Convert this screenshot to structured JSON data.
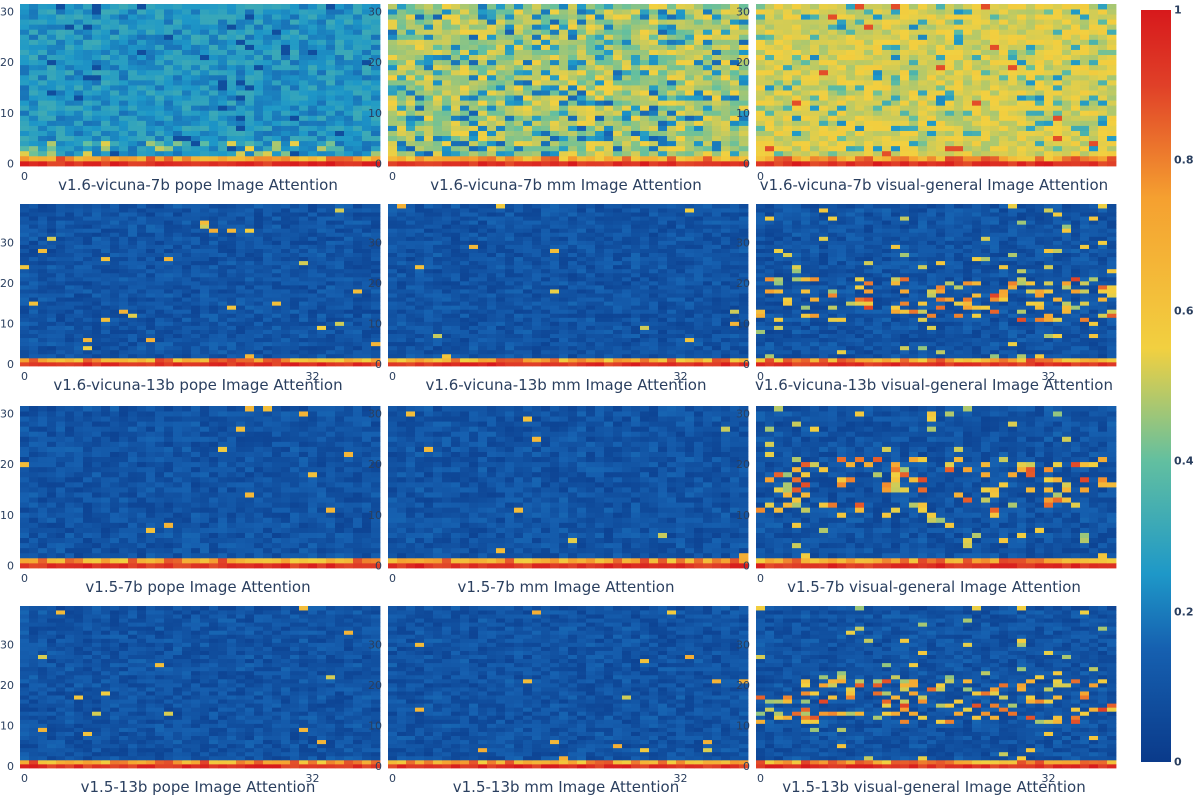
{
  "chart_data": {
    "type": "heatmap",
    "colorscale": [
      "#0a3a8a",
      "#1660b0",
      "#1e98c8",
      "#62bfa0",
      "#f2d040",
      "#f5a030",
      "#e04028",
      "#d7191c"
    ],
    "colorbar": {
      "range": [
        0,
        1
      ],
      "ticks": [
        "0",
        "0.2",
        "0.4",
        "0.6",
        "0.8",
        "1"
      ]
    },
    "panels": [
      {
        "title": "v1.6-vicuna-7b  pope Image Attention",
        "x_ticks": [
          "0"
        ],
        "y_ticks": [
          "0",
          "10",
          "20",
          "30"
        ],
        "ylim": [
          0,
          31
        ],
        "profile": "pope7",
        "seed": 11
      },
      {
        "title": "v1.6-vicuna-7b  mm Image Attention",
        "x_ticks": [
          "0"
        ],
        "y_ticks": [
          "0",
          "10",
          "20",
          "30"
        ],
        "ylim": [
          0,
          31
        ],
        "profile": "mm7",
        "seed": 12
      },
      {
        "title": "v1.6-vicuna-7b  visual-general Image Attention",
        "x_ticks": [
          "0"
        ],
        "y_ticks": [
          "0",
          "10",
          "20",
          "30"
        ],
        "ylim": [
          0,
          31
        ],
        "profile": "vg7",
        "seed": 13
      },
      {
        "title": "v1.6-vicuna-13b  pope Image Attention",
        "x_ticks": [
          "0",
          "32"
        ],
        "y_ticks": [
          "0",
          "10",
          "20",
          "30"
        ],
        "ylim": [
          0,
          39
        ],
        "profile": "lowfew",
        "seed": 21
      },
      {
        "title": "v1.6-vicuna-13b  mm Image Attention",
        "x_ticks": [
          "0",
          "32"
        ],
        "y_ticks": [
          "0",
          "10",
          "20",
          "30"
        ],
        "ylim": [
          0,
          39
        ],
        "profile": "lowfew",
        "seed": 22
      },
      {
        "title": "v1.6-vicuna-13b  visual-general Image Attention",
        "x_ticks": [
          "0",
          "32"
        ],
        "y_ticks": [
          "0",
          "10",
          "20",
          "30"
        ],
        "ylim": [
          0,
          39
        ],
        "profile": "vgband",
        "seed": 23
      },
      {
        "title": "v1.5-7b  pope Image Attention",
        "x_ticks": [
          "0"
        ],
        "y_ticks": [
          "0",
          "10",
          "20",
          "30"
        ],
        "ylim": [
          0,
          31
        ],
        "profile": "lowfew",
        "seed": 31
      },
      {
        "title": "v1.5-7b  mm Image Attention",
        "x_ticks": [
          "0"
        ],
        "y_ticks": [
          "0",
          "10",
          "20",
          "30"
        ],
        "ylim": [
          0,
          31
        ],
        "profile": "lowfew",
        "seed": 32
      },
      {
        "title": "v1.5-7b  visual-general Image Attention",
        "x_ticks": [
          "0"
        ],
        "y_ticks": [
          "0",
          "10",
          "20",
          "30"
        ],
        "ylim": [
          0,
          31
        ],
        "profile": "vgband",
        "seed": 33
      },
      {
        "title": "v1.5-13b  pope Image Attention",
        "x_ticks": [
          "0",
          "32"
        ],
        "y_ticks": [
          "0",
          "10",
          "20",
          "30"
        ],
        "ylim": [
          0,
          39
        ],
        "profile": "lowfew",
        "seed": 41
      },
      {
        "title": "v1.5-13b  mm Image Attention",
        "x_ticks": [
          "0",
          "32"
        ],
        "y_ticks": [
          "0",
          "10",
          "20",
          "30"
        ],
        "ylim": [
          0,
          39
        ],
        "profile": "lowfew",
        "seed": 42
      },
      {
        "title": "v1.5-13b  visual-general Image Attention",
        "x_ticks": [
          "0",
          "32"
        ],
        "y_ticks": [
          "0",
          "10",
          "20",
          "30"
        ],
        "ylim": [
          0,
          39
        ],
        "profile": "vgband",
        "seed": 43
      }
    ]
  }
}
